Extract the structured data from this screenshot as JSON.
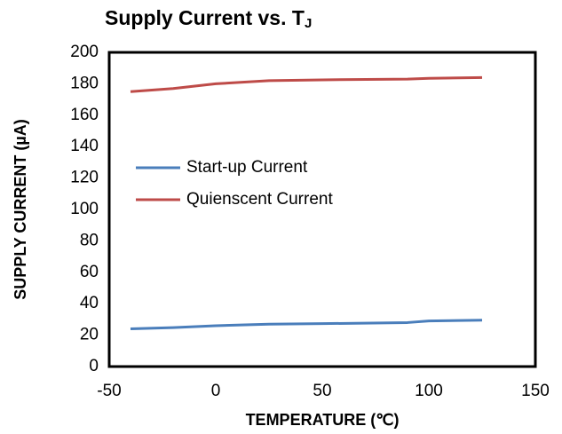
{
  "chart_data": {
    "type": "line",
    "title": "Supply Current vs. T",
    "title_subscript": "J",
    "x_label": "TEMPERATURE  (℃)",
    "y_label": "SUPPLY CURRENT  (µA)",
    "x": [
      -40,
      -20,
      0,
      25,
      50,
      90,
      100,
      125
    ],
    "series": [
      {
        "name": "Start-up Current",
        "color": "#4a7ebb",
        "values": [
          24,
          24.8,
          26,
          27,
          27.3,
          28,
          29,
          29.5
        ]
      },
      {
        "name": "Quienscent Current",
        "color": "#be4b48",
        "values": [
          175,
          177,
          180,
          182,
          182.5,
          183,
          183.5,
          184
        ]
      }
    ],
    "xlim": [
      -50,
      150
    ],
    "xticks": [
      -50,
      0,
      50,
      100,
      150
    ],
    "ylim": [
      0,
      200
    ],
    "yticks": [
      0,
      20,
      40,
      60,
      80,
      100,
      120,
      140,
      160,
      180,
      200
    ],
    "grid": false,
    "legend": "upper left"
  }
}
